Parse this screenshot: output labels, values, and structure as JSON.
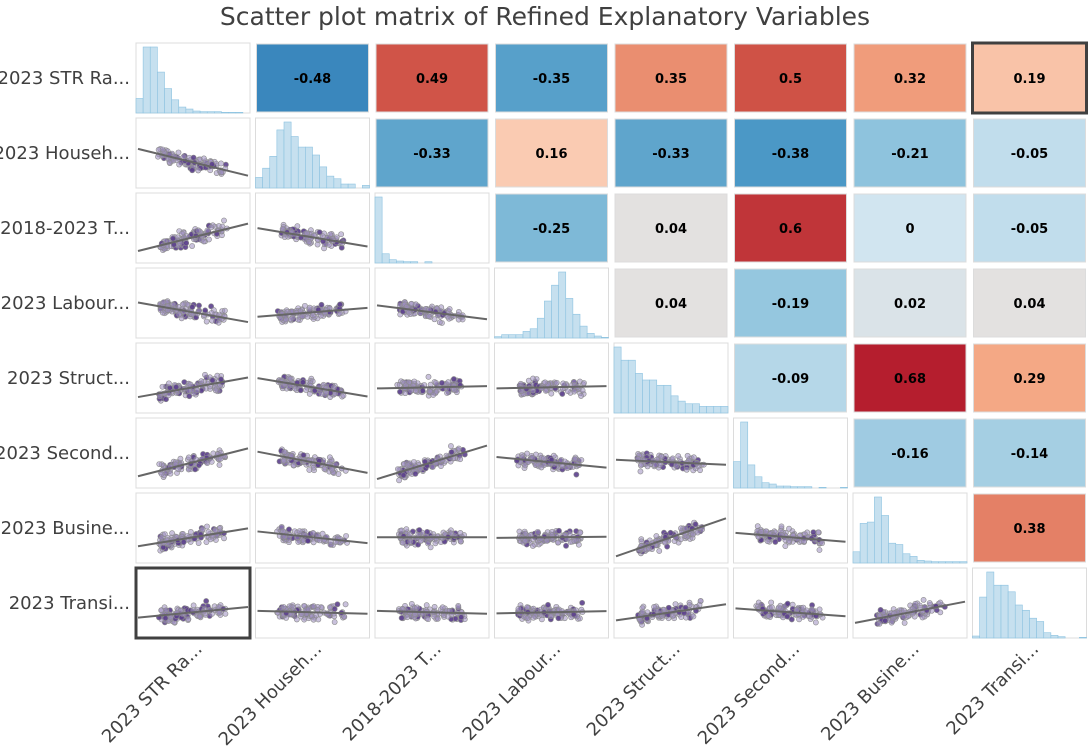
{
  "chart_data": {
    "type": "scatter-matrix",
    "title": "Scatter plot matrix of Refined Explanatory Variables",
    "variables": [
      "2023 STR Ra...",
      "2023 Househ...",
      "2018-2023 T...",
      "2023 Labour...",
      "2023 Struct...",
      "2023 Second...",
      "2023 Busine...",
      "2023 Transi..."
    ],
    "correlations": [
      {
        "row": 0,
        "col": 1,
        "value": -0.48
      },
      {
        "row": 0,
        "col": 2,
        "value": 0.49
      },
      {
        "row": 0,
        "col": 3,
        "value": -0.35
      },
      {
        "row": 0,
        "col": 4,
        "value": 0.35
      },
      {
        "row": 0,
        "col": 5,
        "value": 0.5
      },
      {
        "row": 0,
        "col": 6,
        "value": 0.32
      },
      {
        "row": 0,
        "col": 7,
        "value": 0.19
      },
      {
        "row": 1,
        "col": 2,
        "value": -0.33
      },
      {
        "row": 1,
        "col": 3,
        "value": 0.16
      },
      {
        "row": 1,
        "col": 4,
        "value": -0.33
      },
      {
        "row": 1,
        "col": 5,
        "value": -0.38
      },
      {
        "row": 1,
        "col": 6,
        "value": -0.21
      },
      {
        "row": 1,
        "col": 7,
        "value": -0.05
      },
      {
        "row": 2,
        "col": 3,
        "value": -0.25
      },
      {
        "row": 2,
        "col": 4,
        "value": 0.04
      },
      {
        "row": 2,
        "col": 5,
        "value": 0.6
      },
      {
        "row": 2,
        "col": 6,
        "value": 0
      },
      {
        "row": 2,
        "col": 7,
        "value": -0.05
      },
      {
        "row": 3,
        "col": 4,
        "value": 0.04
      },
      {
        "row": 3,
        "col": 5,
        "value": -0.19
      },
      {
        "row": 3,
        "col": 6,
        "value": 0.02
      },
      {
        "row": 3,
        "col": 7,
        "value": 0.04
      },
      {
        "row": 4,
        "col": 5,
        "value": -0.09
      },
      {
        "row": 4,
        "col": 6,
        "value": 0.68
      },
      {
        "row": 4,
        "col": 7,
        "value": 0.29
      },
      {
        "row": 5,
        "col": 6,
        "value": -0.16
      },
      {
        "row": 5,
        "col": 7,
        "value": -0.14
      },
      {
        "row": 6,
        "col": 7,
        "value": 0.38
      }
    ],
    "histograms": [
      [
        0.22,
        1.0,
        1.0,
        0.62,
        0.37,
        0.2,
        0.09,
        0.06,
        0.03,
        0.02,
        0.02,
        0.02,
        0.01,
        0.01,
        0.01,
        0.0
      ],
      [
        0.16,
        0.3,
        0.48,
        0.88,
        1.0,
        0.78,
        0.62,
        0.62,
        0.5,
        0.32,
        0.18,
        0.14,
        0.06,
        0.06,
        0.0,
        0.04
      ],
      [
        1.0,
        0.14,
        0.05,
        0.03,
        0.02,
        0.02,
        0.0,
        0.02,
        0.0,
        0.0,
        0.0,
        0.0,
        0.0,
        0.0,
        0.0,
        0.0
      ],
      [
        0.02,
        0.05,
        0.05,
        0.05,
        0.1,
        0.14,
        0.3,
        0.56,
        0.8,
        1.0,
        0.6,
        0.36,
        0.18,
        0.07,
        0.03,
        0.01
      ],
      [
        1.0,
        0.8,
        0.8,
        0.6,
        0.5,
        0.5,
        0.42,
        0.42,
        0.26,
        0.18,
        0.14,
        0.14,
        0.1,
        0.1,
        0.1,
        0.1
      ],
      [
        0.4,
        1.0,
        0.35,
        0.17,
        0.08,
        0.06,
        0.03,
        0.03,
        0.02,
        0.02,
        0.02,
        0.0,
        0.01,
        0.0,
        0.0,
        0.01
      ],
      [
        0.17,
        0.6,
        0.62,
        1.0,
        0.72,
        0.3,
        0.28,
        0.14,
        0.1,
        0.04,
        0.03,
        0.02,
        0.02,
        0.02,
        0.02,
        0.02
      ],
      [
        0.03,
        0.62,
        1.0,
        0.8,
        0.8,
        0.7,
        0.5,
        0.42,
        0.3,
        0.25,
        0.08,
        0.04,
        0.02,
        0.0,
        0.0,
        0.01
      ]
    ],
    "highlighted_panels": [
      {
        "row": 0,
        "col": 7
      },
      {
        "row": 7,
        "col": 0
      }
    ],
    "colors": {
      "hist_fill": "#c6e0ef",
      "hist_edge": "#8cc2e0",
      "fit_line": "#666666",
      "point_fill": "#9d8ec0",
      "point_dark": "#5b3f8c",
      "point_edge": "#8c8c8c",
      "panel_border": "#dcdcdc",
      "highlight_border": "#404040"
    }
  }
}
